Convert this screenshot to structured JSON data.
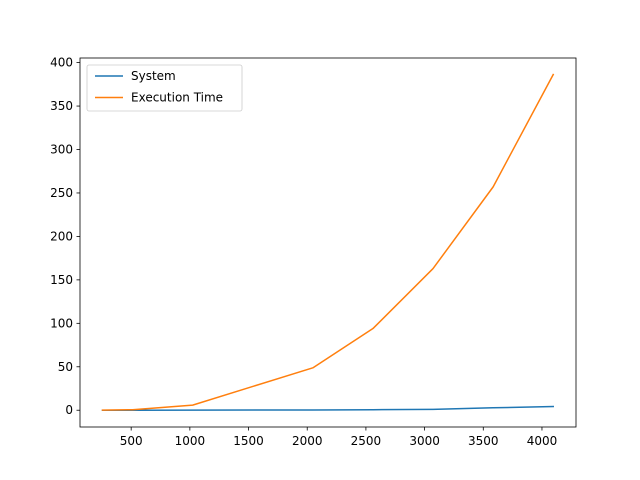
{
  "chart_data": {
    "type": "line",
    "title": "",
    "xlabel": "",
    "ylabel": "",
    "xlim": [
      64,
      4290
    ],
    "ylim": [
      -19.3,
      405.3
    ],
    "x_ticks": [
      500,
      1000,
      1500,
      2000,
      2500,
      3000,
      3500,
      4000
    ],
    "y_ticks": [
      0,
      50,
      100,
      150,
      200,
      250,
      300,
      350,
      400
    ],
    "grid": false,
    "legend_position": "top-left",
    "series": [
      {
        "name": "System",
        "color": "#1f77b4",
        "x": [
          256,
          512,
          1024,
          2048,
          2560,
          3072,
          3584,
          4096
        ],
        "y": [
          0.0,
          0.0,
          0.1,
          0.3,
          0.6,
          1.0,
          2.8,
          4.3
        ]
      },
      {
        "name": "Execution Time",
        "color": "#ff7f0e",
        "x": [
          256,
          512,
          1024,
          2048,
          2560,
          3072,
          3584,
          4096
        ],
        "y": [
          0.1,
          0.6,
          5.9,
          48.8,
          94.0,
          163.0,
          257.0,
          386.3
        ]
      }
    ]
  }
}
